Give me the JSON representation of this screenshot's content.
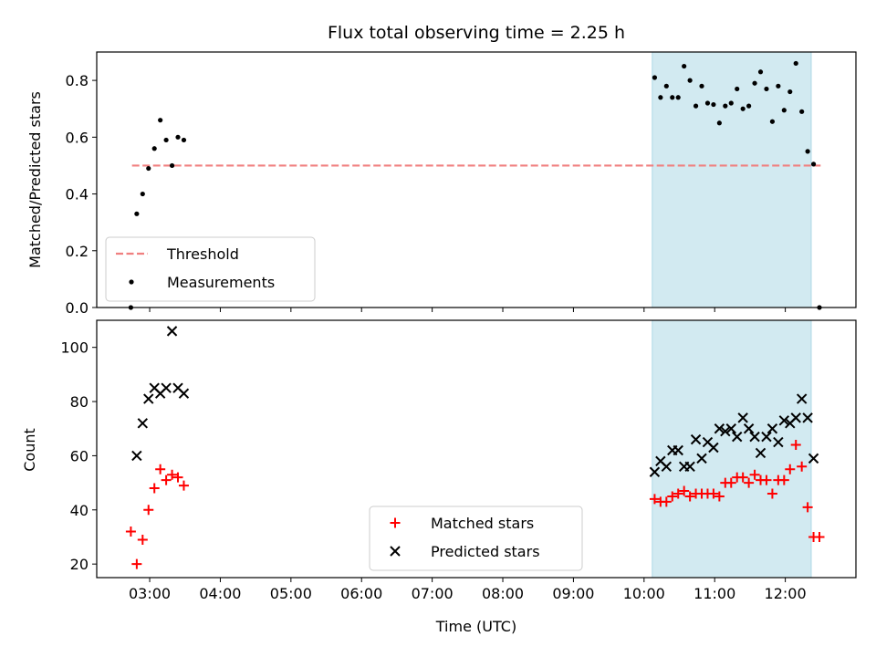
{
  "chart_data": {
    "type": "scatter",
    "title": "Flux total observing time = 2.25 h",
    "xlabel": "Time (UTC)",
    "x_unit": "hours UTC",
    "xlim": [
      "02:15",
      "13:00"
    ],
    "xticks": [
      "03:00",
      "04:00",
      "05:00",
      "06:00",
      "07:00",
      "08:00",
      "09:00",
      "10:00",
      "11:00",
      "12:00"
    ],
    "highlight_span": {
      "start": "10:07",
      "end": "12:22",
      "color": "#add8e6"
    },
    "panels": [
      {
        "ylabel": "Matched/Predicted stars",
        "ylim": [
          0,
          0.9
        ],
        "yticks": [
          "0.0",
          "0.2",
          "0.4",
          "0.6",
          "0.8"
        ],
        "legend_position": "lower left",
        "threshold": {
          "name": "Threshold",
          "value": 0.5,
          "start": "02:45",
          "end": "12:30",
          "color": "#f08080",
          "style": "dashed"
        },
        "series": [
          {
            "name": "Measurements",
            "marker": "dot",
            "color": "#000000",
            "points": [
              [
                "02:44",
                0.0
              ],
              [
                "02:49",
                0.33
              ],
              [
                "02:54",
                0.4
              ],
              [
                "02:59",
                0.49
              ],
              [
                "03:04",
                0.56
              ],
              [
                "03:09",
                0.66
              ],
              [
                "03:14",
                0.59
              ],
              [
                "03:19",
                0.5
              ],
              [
                "03:24",
                0.6
              ],
              [
                "03:29",
                0.59
              ],
              [
                "10:09",
                0.81
              ],
              [
                "10:14",
                0.74
              ],
              [
                "10:19",
                0.78
              ],
              [
                "10:24",
                0.74
              ],
              [
                "10:29",
                0.74
              ],
              [
                "10:34",
                0.85
              ],
              [
                "10:39",
                0.8
              ],
              [
                "10:44",
                0.71
              ],
              [
                "10:49",
                0.78
              ],
              [
                "10:54",
                0.72
              ],
              [
                "10:59",
                0.715
              ],
              [
                "11:04",
                0.65
              ],
              [
                "11:09",
                0.71
              ],
              [
                "11:14",
                0.72
              ],
              [
                "11:19",
                0.77
              ],
              [
                "11:24",
                0.7
              ],
              [
                "11:29",
                0.71
              ],
              [
                "11:34",
                0.79
              ],
              [
                "11:39",
                0.83
              ],
              [
                "11:44",
                0.77
              ],
              [
                "11:49",
                0.655
              ],
              [
                "11:54",
                0.78
              ],
              [
                "11:59",
                0.695
              ],
              [
                "12:04",
                0.76
              ],
              [
                "12:09",
                0.86
              ],
              [
                "12:14",
                0.69
              ],
              [
                "12:19",
                0.55
              ],
              [
                "12:24",
                0.505
              ],
              [
                "12:29",
                0.0
              ]
            ]
          }
        ]
      },
      {
        "ylabel": "Count",
        "ylim": [
          15,
          110
        ],
        "yticks": [
          "20",
          "40",
          "60",
          "80",
          "100"
        ],
        "legend_position": "lower center",
        "series": [
          {
            "name": "Matched stars",
            "marker": "plus",
            "color": "#ff0000",
            "points": [
              [
                "02:44",
                32
              ],
              [
                "02:49",
                20
              ],
              [
                "02:54",
                29
              ],
              [
                "02:59",
                40
              ],
              [
                "03:04",
                48
              ],
              [
                "03:09",
                55
              ],
              [
                "03:14",
                51
              ],
              [
                "03:19",
                53
              ],
              [
                "03:24",
                52
              ],
              [
                "03:29",
                49
              ],
              [
                "10:09",
                44
              ],
              [
                "10:14",
                43
              ],
              [
                "10:19",
                43
              ],
              [
                "10:24",
                45
              ],
              [
                "10:29",
                46
              ],
              [
                "10:34",
                47
              ],
              [
                "10:39",
                45
              ],
              [
                "10:44",
                46
              ],
              [
                "10:49",
                46
              ],
              [
                "10:54",
                46
              ],
              [
                "10:59",
                46
              ],
              [
                "11:04",
                45
              ],
              [
                "11:09",
                50
              ],
              [
                "11:14",
                50
              ],
              [
                "11:19",
                52
              ],
              [
                "11:24",
                52
              ],
              [
                "11:29",
                50
              ],
              [
                "11:34",
                53
              ],
              [
                "11:39",
                51
              ],
              [
                "11:44",
                51
              ],
              [
                "11:49",
                46
              ],
              [
                "11:54",
                51
              ],
              [
                "11:59",
                51
              ],
              [
                "12:04",
                55
              ],
              [
                "12:09",
                64
              ],
              [
                "12:14",
                56
              ],
              [
                "12:19",
                41
              ],
              [
                "12:24",
                30
              ],
              [
                "12:29",
                30
              ]
            ]
          },
          {
            "name": "Predicted stars",
            "marker": "x",
            "color": "#000000",
            "points": [
              [
                "02:49",
                60
              ],
              [
                "02:54",
                72
              ],
              [
                "02:59",
                81
              ],
              [
                "03:04",
                85
              ],
              [
                "03:09",
                83
              ],
              [
                "03:14",
                85
              ],
              [
                "03:19",
                106
              ],
              [
                "03:24",
                85
              ],
              [
                "03:29",
                83
              ],
              [
                "10:09",
                54
              ],
              [
                "10:14",
                58
              ],
              [
                "10:19",
                56
              ],
              [
                "10:24",
                62
              ],
              [
                "10:29",
                62
              ],
              [
                "10:34",
                56
              ],
              [
                "10:39",
                56
              ],
              [
                "10:44",
                66
              ],
              [
                "10:49",
                59
              ],
              [
                "10:54",
                65
              ],
              [
                "10:59",
                63
              ],
              [
                "11:04",
                70
              ],
              [
                "11:09",
                69
              ],
              [
                "11:14",
                70
              ],
              [
                "11:19",
                67
              ],
              [
                "11:24",
                74
              ],
              [
                "11:29",
                70
              ],
              [
                "11:34",
                67
              ],
              [
                "11:39",
                61
              ],
              [
                "11:44",
                67
              ],
              [
                "11:49",
                70
              ],
              [
                "11:54",
                65
              ],
              [
                "11:59",
                73
              ],
              [
                "12:04",
                72
              ],
              [
                "12:09",
                74
              ],
              [
                "12:14",
                81
              ],
              [
                "12:19",
                74
              ],
              [
                "12:24",
                59
              ]
            ]
          }
        ]
      }
    ]
  }
}
